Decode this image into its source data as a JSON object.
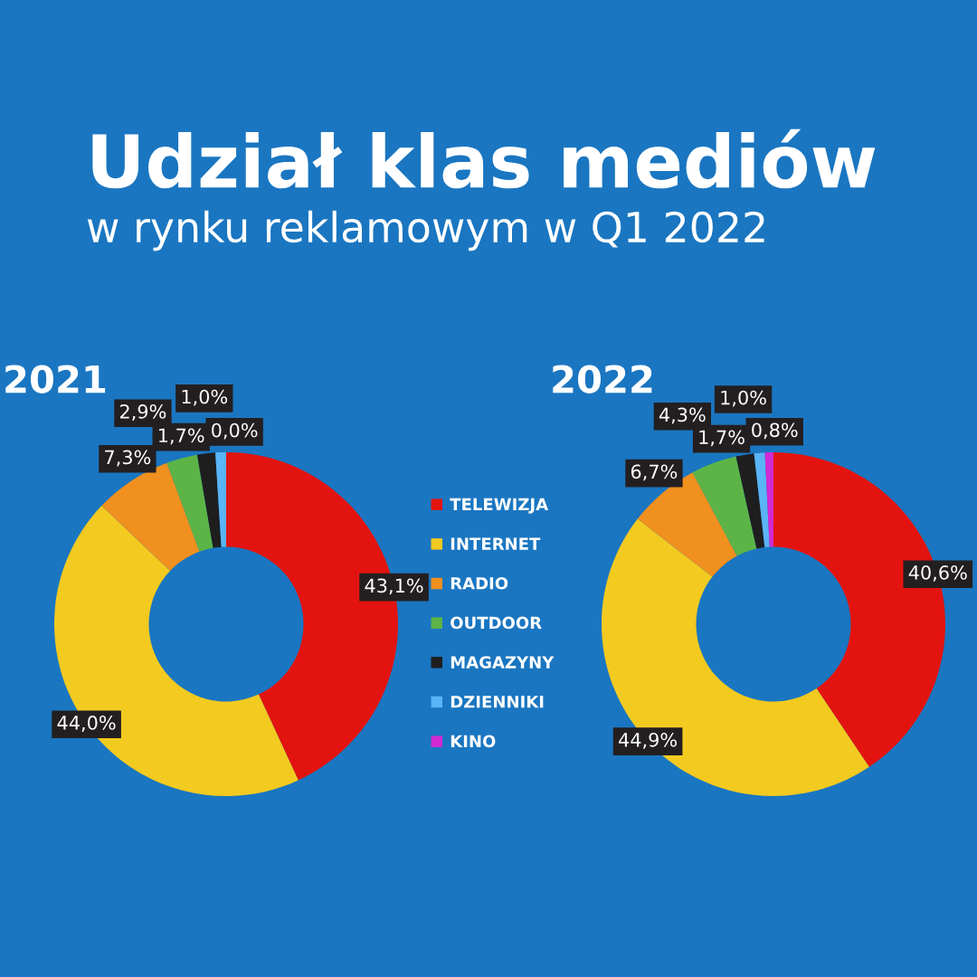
{
  "chart_data": [
    {
      "type": "donut",
      "title": "2021",
      "annotations": [
        "Udział klas mediów",
        "w rynku reklamowym w Q1 2022"
      ],
      "legend": "right",
      "categories": [
        "TELEWIZJA",
        "INTERNET",
        "RADIO",
        "OUTDOOR",
        "MAGAZYNY",
        "DZIENNIKI",
        "KINO"
      ],
      "values": [
        43.1,
        44.0,
        7.3,
        2.9,
        1.7,
        1.0,
        0.0
      ],
      "value_labels": [
        "43,1%",
        "44,0%",
        "7,3%",
        "2,9%",
        "1,7%",
        "1,0%",
        "0,0%"
      ],
      "colors": [
        "#e3140f",
        "#f3ca20",
        "#f0901e",
        "#5db446",
        "#1e1e1e",
        "#5ab4f5",
        "#d22ad2"
      ]
    },
    {
      "type": "donut",
      "title": "2022",
      "categories": [
        null,
        null,
        null,
        null,
        null,
        null,
        null
      ],
      "values": [
        40.6,
        44.9,
        6.7,
        4.3,
        1.7,
        1.0,
        0.8
      ],
      "value_labels": [
        "40,6%",
        "44,9%",
        "6,7%",
        "4,3%",
        "1,7%",
        "1,0%",
        "0,8%"
      ],
      "colors": [
        "#e3140f",
        "#f3ca20",
        "#f0901e",
        "#5db446",
        "#1e1e1e",
        "#5ab4f5",
        "#d22ad2"
      ]
    }
  ]
}
